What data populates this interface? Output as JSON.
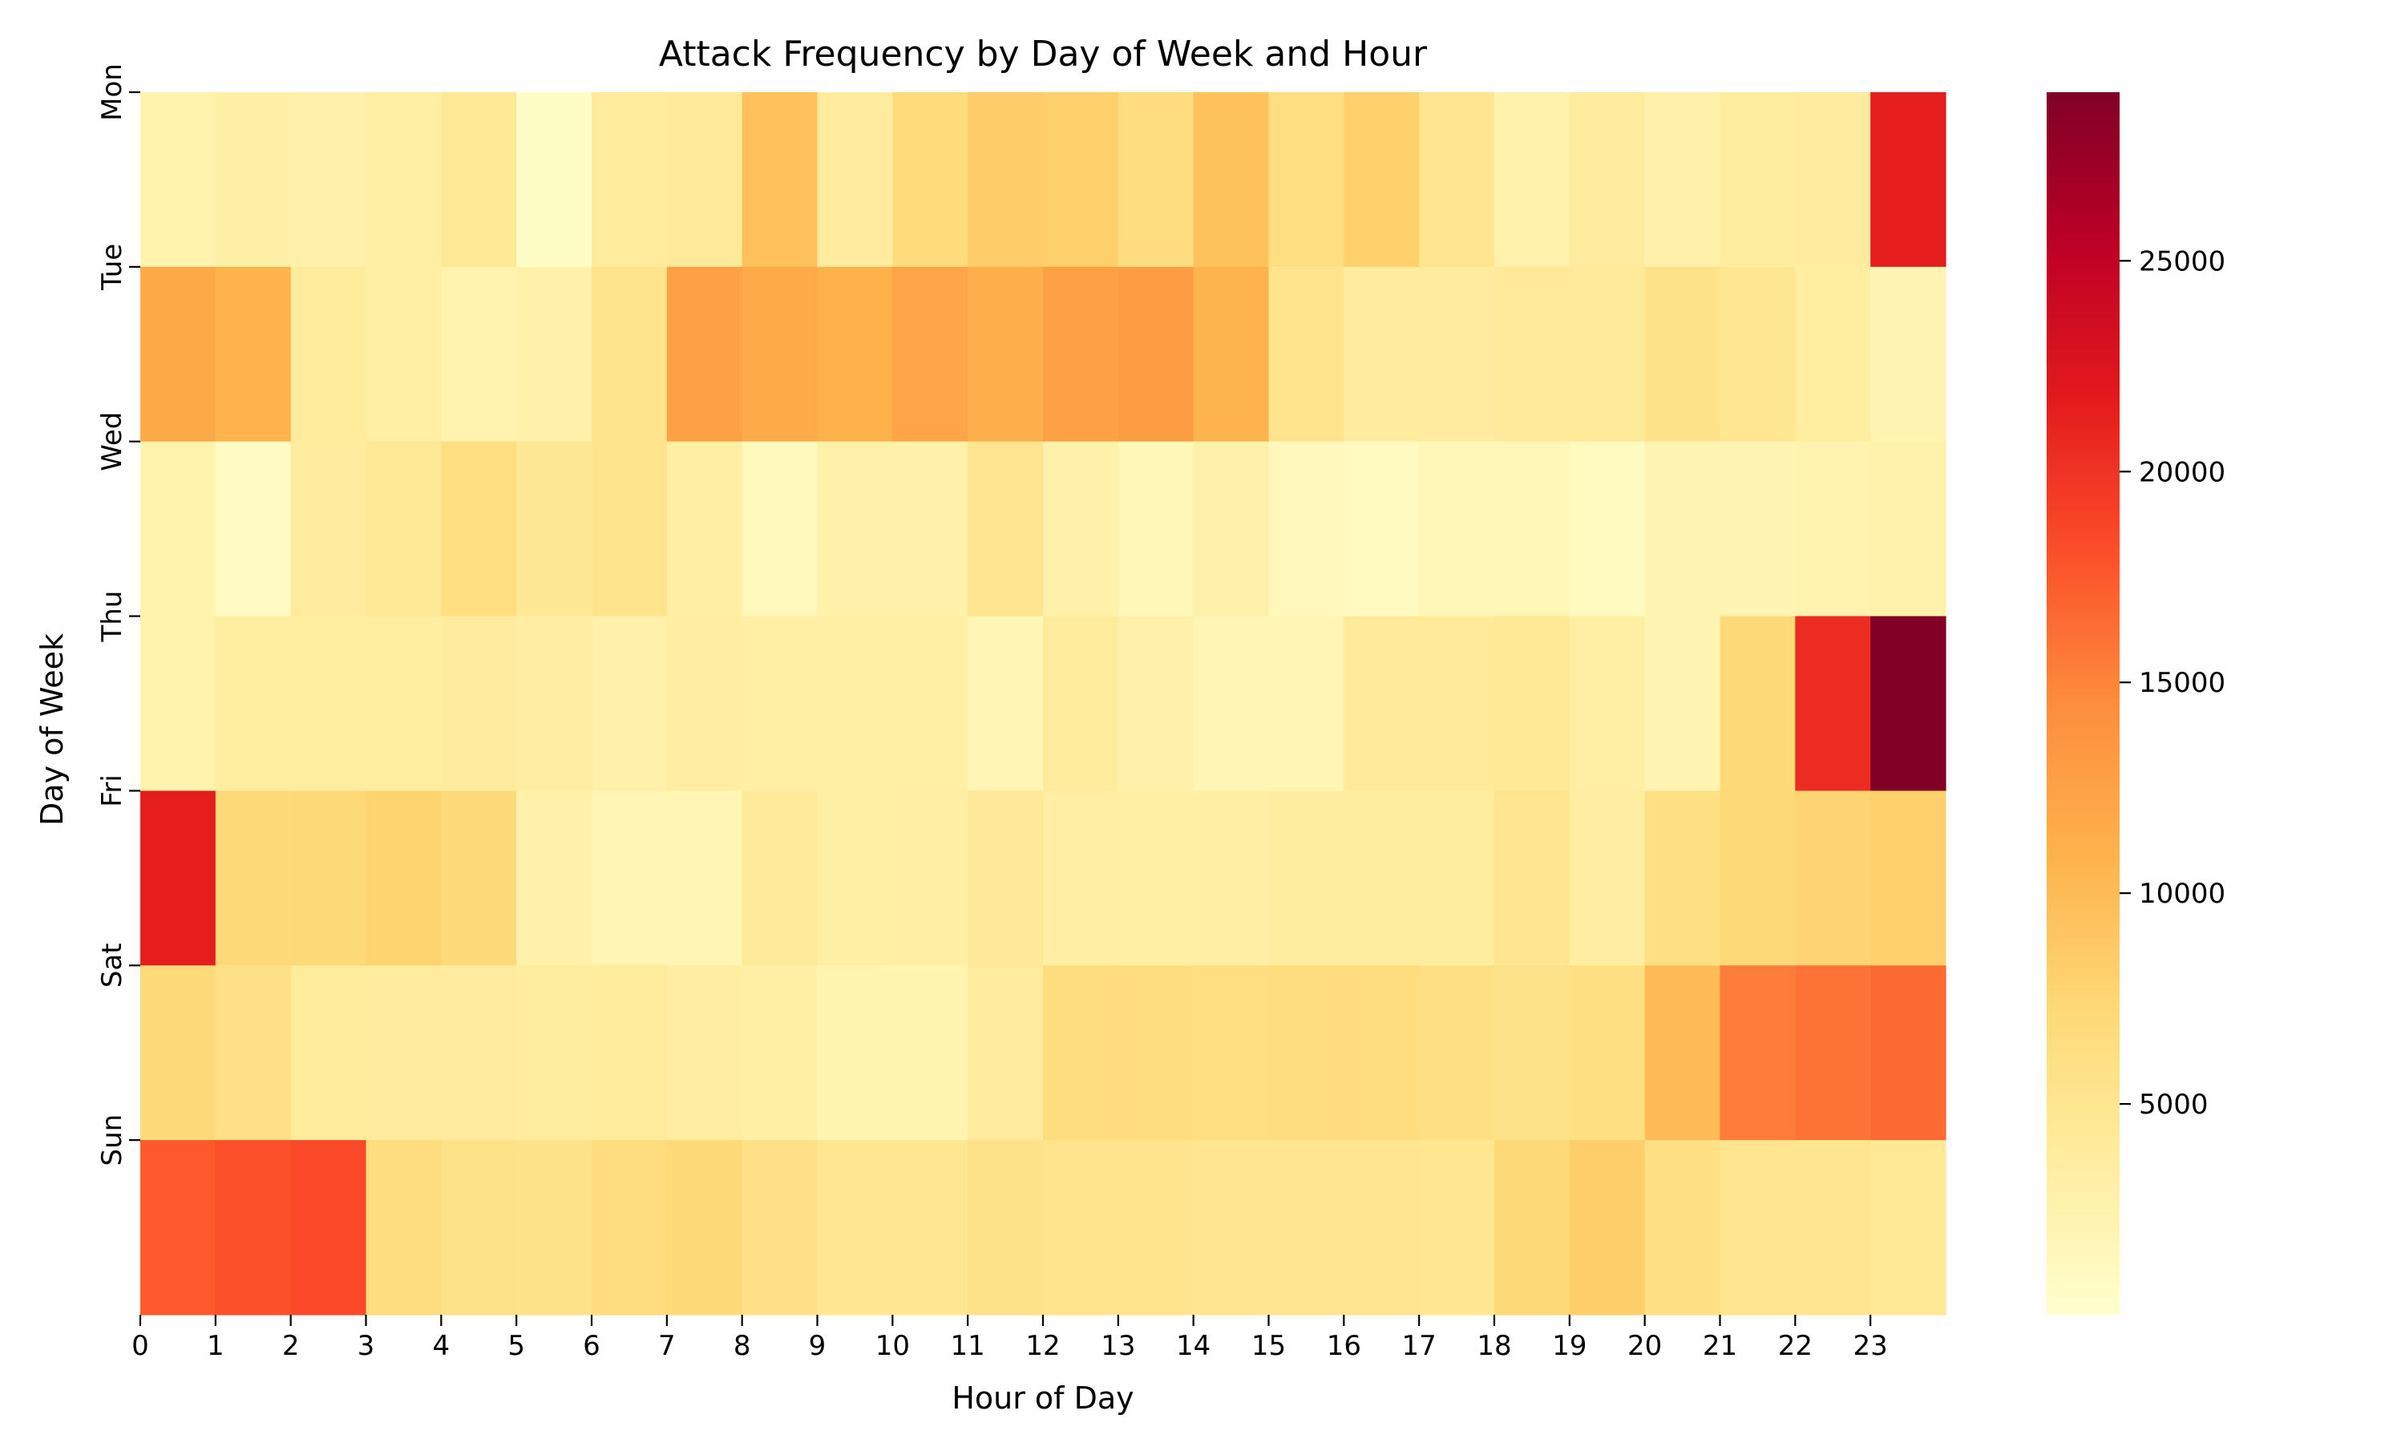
{
  "chart_data": {
    "type": "heatmap",
    "title": "Attack Frequency by Day of Week and Hour",
    "xlabel": "Hour of Day",
    "ylabel": "Day of Week",
    "rows": [
      "Mon",
      "Tue",
      "Wed",
      "Thu",
      "Fri",
      "Sat",
      "Sun"
    ],
    "columns": [
      "0",
      "1",
      "2",
      "3",
      "4",
      "5",
      "6",
      "7",
      "8",
      "9",
      "10",
      "11",
      "12",
      "13",
      "14",
      "15",
      "16",
      "17",
      "18",
      "19",
      "20",
      "21",
      "22",
      "23"
    ],
    "values": [
      [
        2500,
        3000,
        2800,
        3200,
        4500,
        500,
        4000,
        4100,
        9500,
        3800,
        6700,
        8400,
        8100,
        6600,
        9400,
        6300,
        8000,
        5100,
        2600,
        3900,
        2900,
        3700,
        3900,
        21500
      ],
      [
        11800,
        10800,
        4000,
        3200,
        2400,
        2800,
        5200,
        12600,
        11700,
        11000,
        12100,
        11300,
        12600,
        12900,
        10700,
        5300,
        3800,
        3800,
        4100,
        4200,
        5500,
        4900,
        3600,
        2200
      ],
      [
        2500,
        800,
        3800,
        4400,
        6300,
        4600,
        5200,
        3400,
        1400,
        2800,
        2800,
        5000,
        2900,
        1700,
        2900,
        1500,
        1100,
        1700,
        1700,
        1100,
        2200,
        2200,
        2400,
        2700
      ],
      [
        2500,
        3600,
        3600,
        3600,
        3900,
        3500,
        2800,
        3500,
        3200,
        3300,
        3100,
        1800,
        4000,
        2800,
        2000,
        2000,
        4100,
        4200,
        4500,
        3300,
        2200,
        7000,
        20500,
        29000
      ],
      [
        21500,
        7000,
        7200,
        7700,
        6900,
        2800,
        1800,
        1800,
        4200,
        3300,
        3400,
        4300,
        3400,
        3100,
        3400,
        3700,
        3700,
        3700,
        5100,
        3500,
        6000,
        7200,
        7600,
        8000
      ],
      [
        6900,
        5800,
        4000,
        3900,
        3900,
        3700,
        4000,
        3500,
        3100,
        2300,
        2300,
        3900,
        6500,
        6500,
        6400,
        6500,
        6500,
        6000,
        5600,
        6200,
        10000,
        15500,
        16000,
        16500
      ],
      [
        17500,
        18000,
        18500,
        6600,
        5700,
        5500,
        6500,
        7000,
        5800,
        4900,
        4900,
        5600,
        5300,
        5300,
        5100,
        5000,
        5100,
        4800,
        7200,
        8300,
        6000,
        5000,
        5000,
        4500
      ]
    ],
    "colorbar": {
      "min": 0,
      "max": 29000,
      "ticks": [
        "5000",
        "10000",
        "15000",
        "20000",
        "25000"
      ],
      "colormap": "YlOrRd",
      "colors": [
        "#ffffcc",
        "#ffeda0",
        "#fed976",
        "#feb24c",
        "#fd8d3c",
        "#fc4e2a",
        "#e31a1c",
        "#bd0026",
        "#800026"
      ]
    },
    "grid": false,
    "legend": "colorbar-right"
  }
}
